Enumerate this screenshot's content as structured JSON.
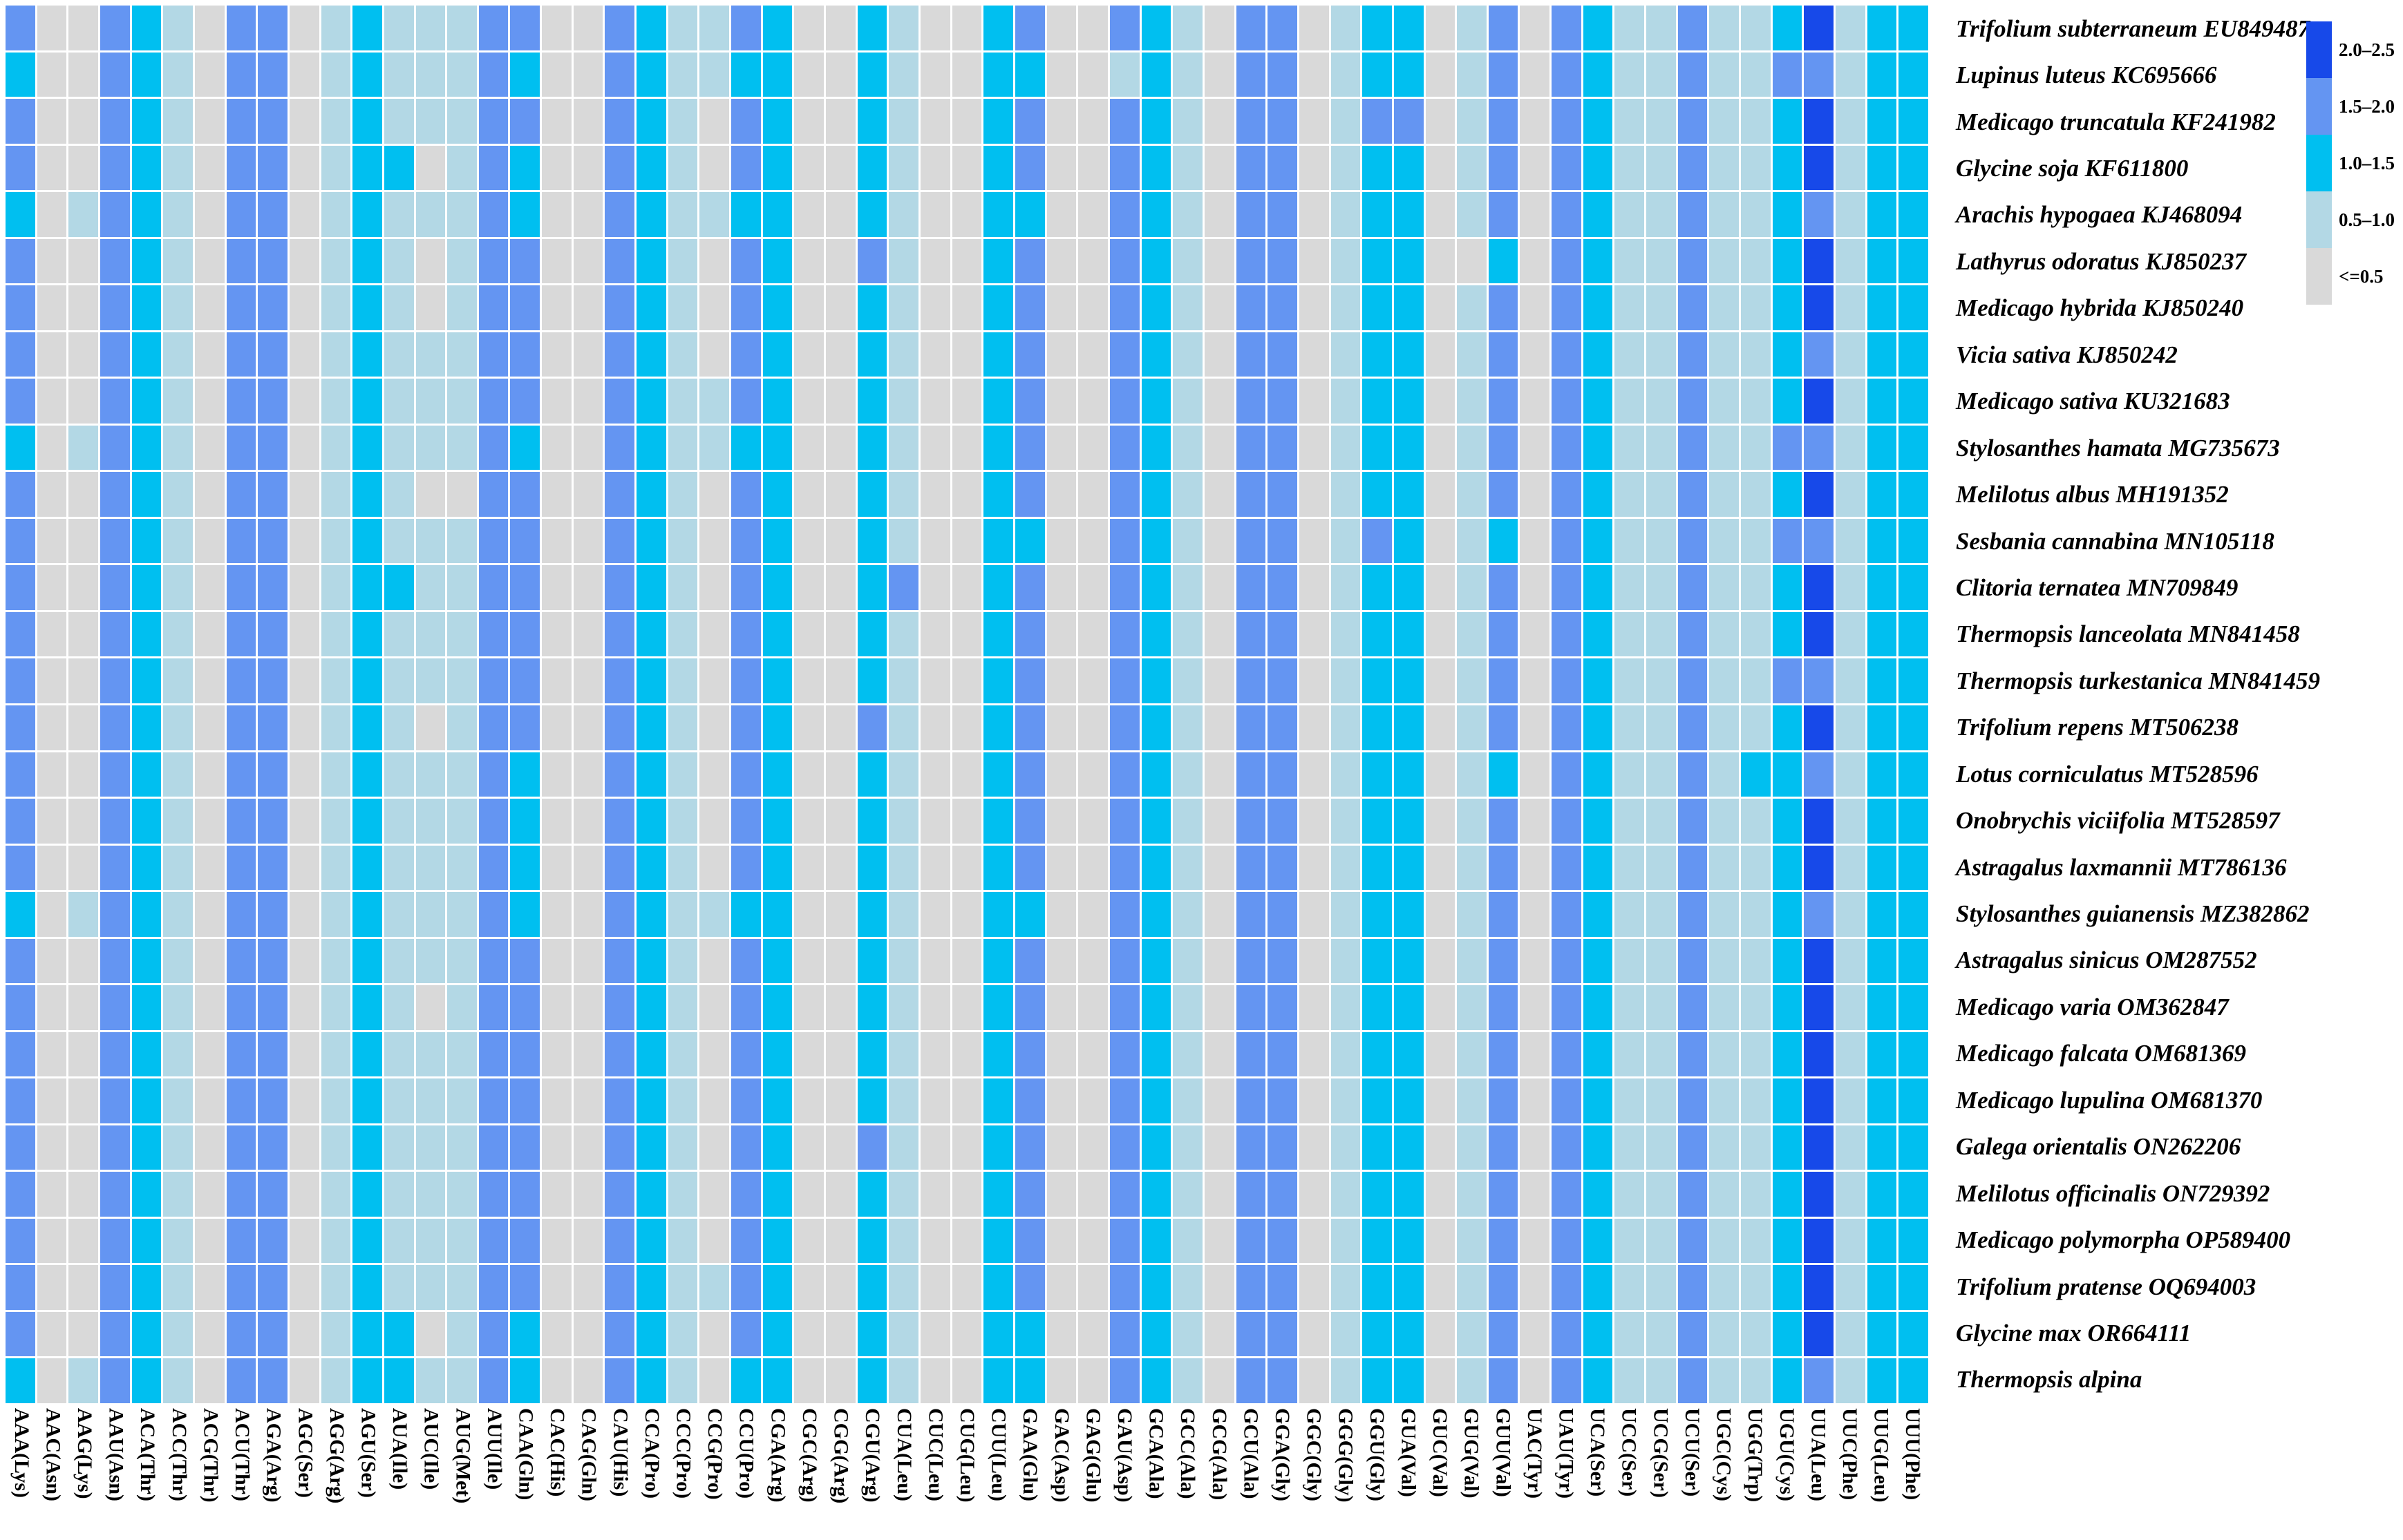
{
  "chart_data": {
    "type": "heatmap",
    "description": "RSCU codon-usage heatmap of legume chloroplast/plastome sequences; rows are species with GenBank accessions, columns are the 61 sense codons, cell values are binned RSCU ranges",
    "legend_position": "top-right",
    "bins": {
      "5": {
        "range": "2.0–2.5",
        "color": "#1749e9"
      },
      "4": {
        "range": "1.5–2.0",
        "color": "#6495f2"
      },
      "3": {
        "range": "1.0–1.5",
        "color": "#00bff0"
      },
      "2": {
        "range": "0.5–1.0",
        "color": "#b3d8e5"
      },
      "1": {
        "range": "<=0.5",
        "color": "#d9d9d9"
      }
    },
    "columns": [
      "AAA(Lys)",
      "AAC(Asn)",
      "AAG(Lys)",
      "AAU(Asn)",
      "ACA(Thr)",
      "ACC(Thr)",
      "ACG(Thr)",
      "ACU(Thr)",
      "AGA(Arg)",
      "AGC(Ser)",
      "AGG(Arg)",
      "AGU(Ser)",
      "AUA(Ile)",
      "AUC(Ile)",
      "AUG(Met)",
      "AUU(Ile)",
      "CAA(Gln)",
      "CAC(His)",
      "CAG(Gln)",
      "CAU(His)",
      "CCA(Pro)",
      "CCC(Pro)",
      "CCG(Pro)",
      "CCU(Pro)",
      "CGA(Arg)",
      "CGC(Arg)",
      "CGG(Arg)",
      "CGU(Arg)",
      "CUA(Leu)",
      "CUC(Leu)",
      "CUG(Leu)",
      "CUU(Leu)",
      "GAA(Glu)",
      "GAC(Asp)",
      "GAG(Glu)",
      "GAU(Asp)",
      "GCA(Ala)",
      "GCC(Ala)",
      "GCG(Ala)",
      "GCU(Ala)",
      "GGA(Gly)",
      "GGC(Gly)",
      "GGG(Gly)",
      "GGU(Gly)",
      "GUA(Val)",
      "GUC(Val)",
      "GUG(Val)",
      "GUU(Val)",
      "UAC(Tyr)",
      "UAU(Tyr)",
      "UCA(Ser)",
      "UCC(Ser)",
      "UCG(Ser)",
      "UCU(Ser)",
      "UGC(Cys)",
      "UGG(Trp)",
      "UGU(Cys)",
      "UUA(Leu)",
      "UUC(Phe)",
      "UUG(Leu)",
      "UUU(Phe)"
    ],
    "rows": [
      {
        "label": "Trifolium subterraneum EU849487",
        "cells": "4114321441232224411432243113211341143214412331241432242235233"
      },
      {
        "label": "Lupinus luteus KC695666",
        "cells": "3114321441232224311432233113211331123214412331241432242244233"
      },
      {
        "label": "Medicago truncatula KF241982",
        "cells": "4114321441232224411432143113211341143214412441241432242235233"
      },
      {
        "label": "Glycine soja KF611800",
        "cells": "4114321441233124311432143113211341143214412331241432242235233"
      },
      {
        "label": "Arachis hypogaea KJ468094",
        "cells": "3124321441232224311432233113211331143214412331241432242234233"
      },
      {
        "label": "Lathyrus odoratus KJ850237",
        "cells": "4114321441232124411432143114211341143214412331131432242235233"
      },
      {
        "label": "Medicago hybrida KJ850240",
        "cells": "4114321441232124411432143113211341143214412331241432242235233"
      },
      {
        "label": "Vicia sativa KJ850242",
        "cells": "4114321441232224411432143113211341143214412331241432242234233"
      },
      {
        "label": "Medicago sativa KU321683",
        "cells": "4114321441232224411432243113211341143214412331241432242235233"
      },
      {
        "label": "Stylosanthes hamata MG735673",
        "cells": "3124321441232224311432233113211341143214412331241432242244233"
      },
      {
        "label": "Melilotus albus MH191352",
        "cells": "4114321441232114411432143113211341143214412331241432242235233"
      },
      {
        "label": "Sesbania cannabina MN105118",
        "cells": "4114321441232224411432143113211331143214412431231432242244233"
      },
      {
        "label": "Clitoria ternatea MN709849",
        "cells": "4114321441233224411432143113411341143214412331241432242235233"
      },
      {
        "label": "Thermopsis lanceolata MN841458",
        "cells": "4114321441232224411432143113211341143214412331241432242235233"
      },
      {
        "label": "Thermopsis turkestanica MN841459",
        "cells": "4114321441232224411432143113211341143214412331241432242244233"
      },
      {
        "label": "Trifolium repens MT506238",
        "cells": "4114321441232124411432143114211341143214412331241432242235233"
      },
      {
        "label": "Lotus corniculatus MT528596",
        "cells": "4114321441232224311432143113211341143214412331231432242334233"
      },
      {
        "label": "Onobrychis viciifolia MT528597",
        "cells": "4114321441232224311432143113211341143214412331241432242235233"
      },
      {
        "label": "Astragalus laxmannii MT786136",
        "cells": "4114321441232224311432143113211341143214412331241432242235233"
      },
      {
        "label": "Stylosanthes guianensis MZ382862",
        "cells": "3124321441232224311432233113211331143214412331241432242234233"
      },
      {
        "label": "Astragalus sinicus OM287552",
        "cells": "4114321441232224411432143113211341143214412331241432242235233"
      },
      {
        "label": "Medicago varia OM362847",
        "cells": "4114321441232124411432143113211341143214412331241432242235233"
      },
      {
        "label": "Medicago falcata OM681369",
        "cells": "4114321441232224411432143113211341143214412331241432242235233"
      },
      {
        "label": "Medicago lupulina OM681370",
        "cells": "4114321441232224411432143113211341143214412331241432242235233"
      },
      {
        "label": "Galega orientalis ON262206",
        "cells": "4114321441232224411432143114211341143214412331241432242235233"
      },
      {
        "label": "Melilotus officinalis ON729392",
        "cells": "4114321441232224411432143113211341143214412331241432242235233"
      },
      {
        "label": "Medicago polymorpha OP589400",
        "cells": "4114321441232224411432143113211341143214412331241432242235233"
      },
      {
        "label": "Trifolium pratense OQ694003",
        "cells": "4114321441232224411432243113211341143214412331241432242235233"
      },
      {
        "label": "Glycine max OR664111",
        "cells": "4114321441233124311432143113211331143214412331241432242235233"
      },
      {
        "label": "Thermopsis alpina",
        "cells": "3124321441233224311432133113211331143214412331241432242234233"
      }
    ],
    "legend_entries": [
      {
        "label": "2.0–2.5",
        "code": "5",
        "color": "#1749e9"
      },
      {
        "label": "1.5–2.0",
        "code": "4",
        "color": "#6495f2"
      },
      {
        "label": "1.0–1.5",
        "code": "3",
        "color": "#00bff0"
      },
      {
        "label": "0.5–1.0",
        "code": "2",
        "color": "#b3d8e5"
      },
      {
        "label": "<=0.5",
        "code": "1",
        "color": "#d9d9d9"
      }
    ]
  }
}
